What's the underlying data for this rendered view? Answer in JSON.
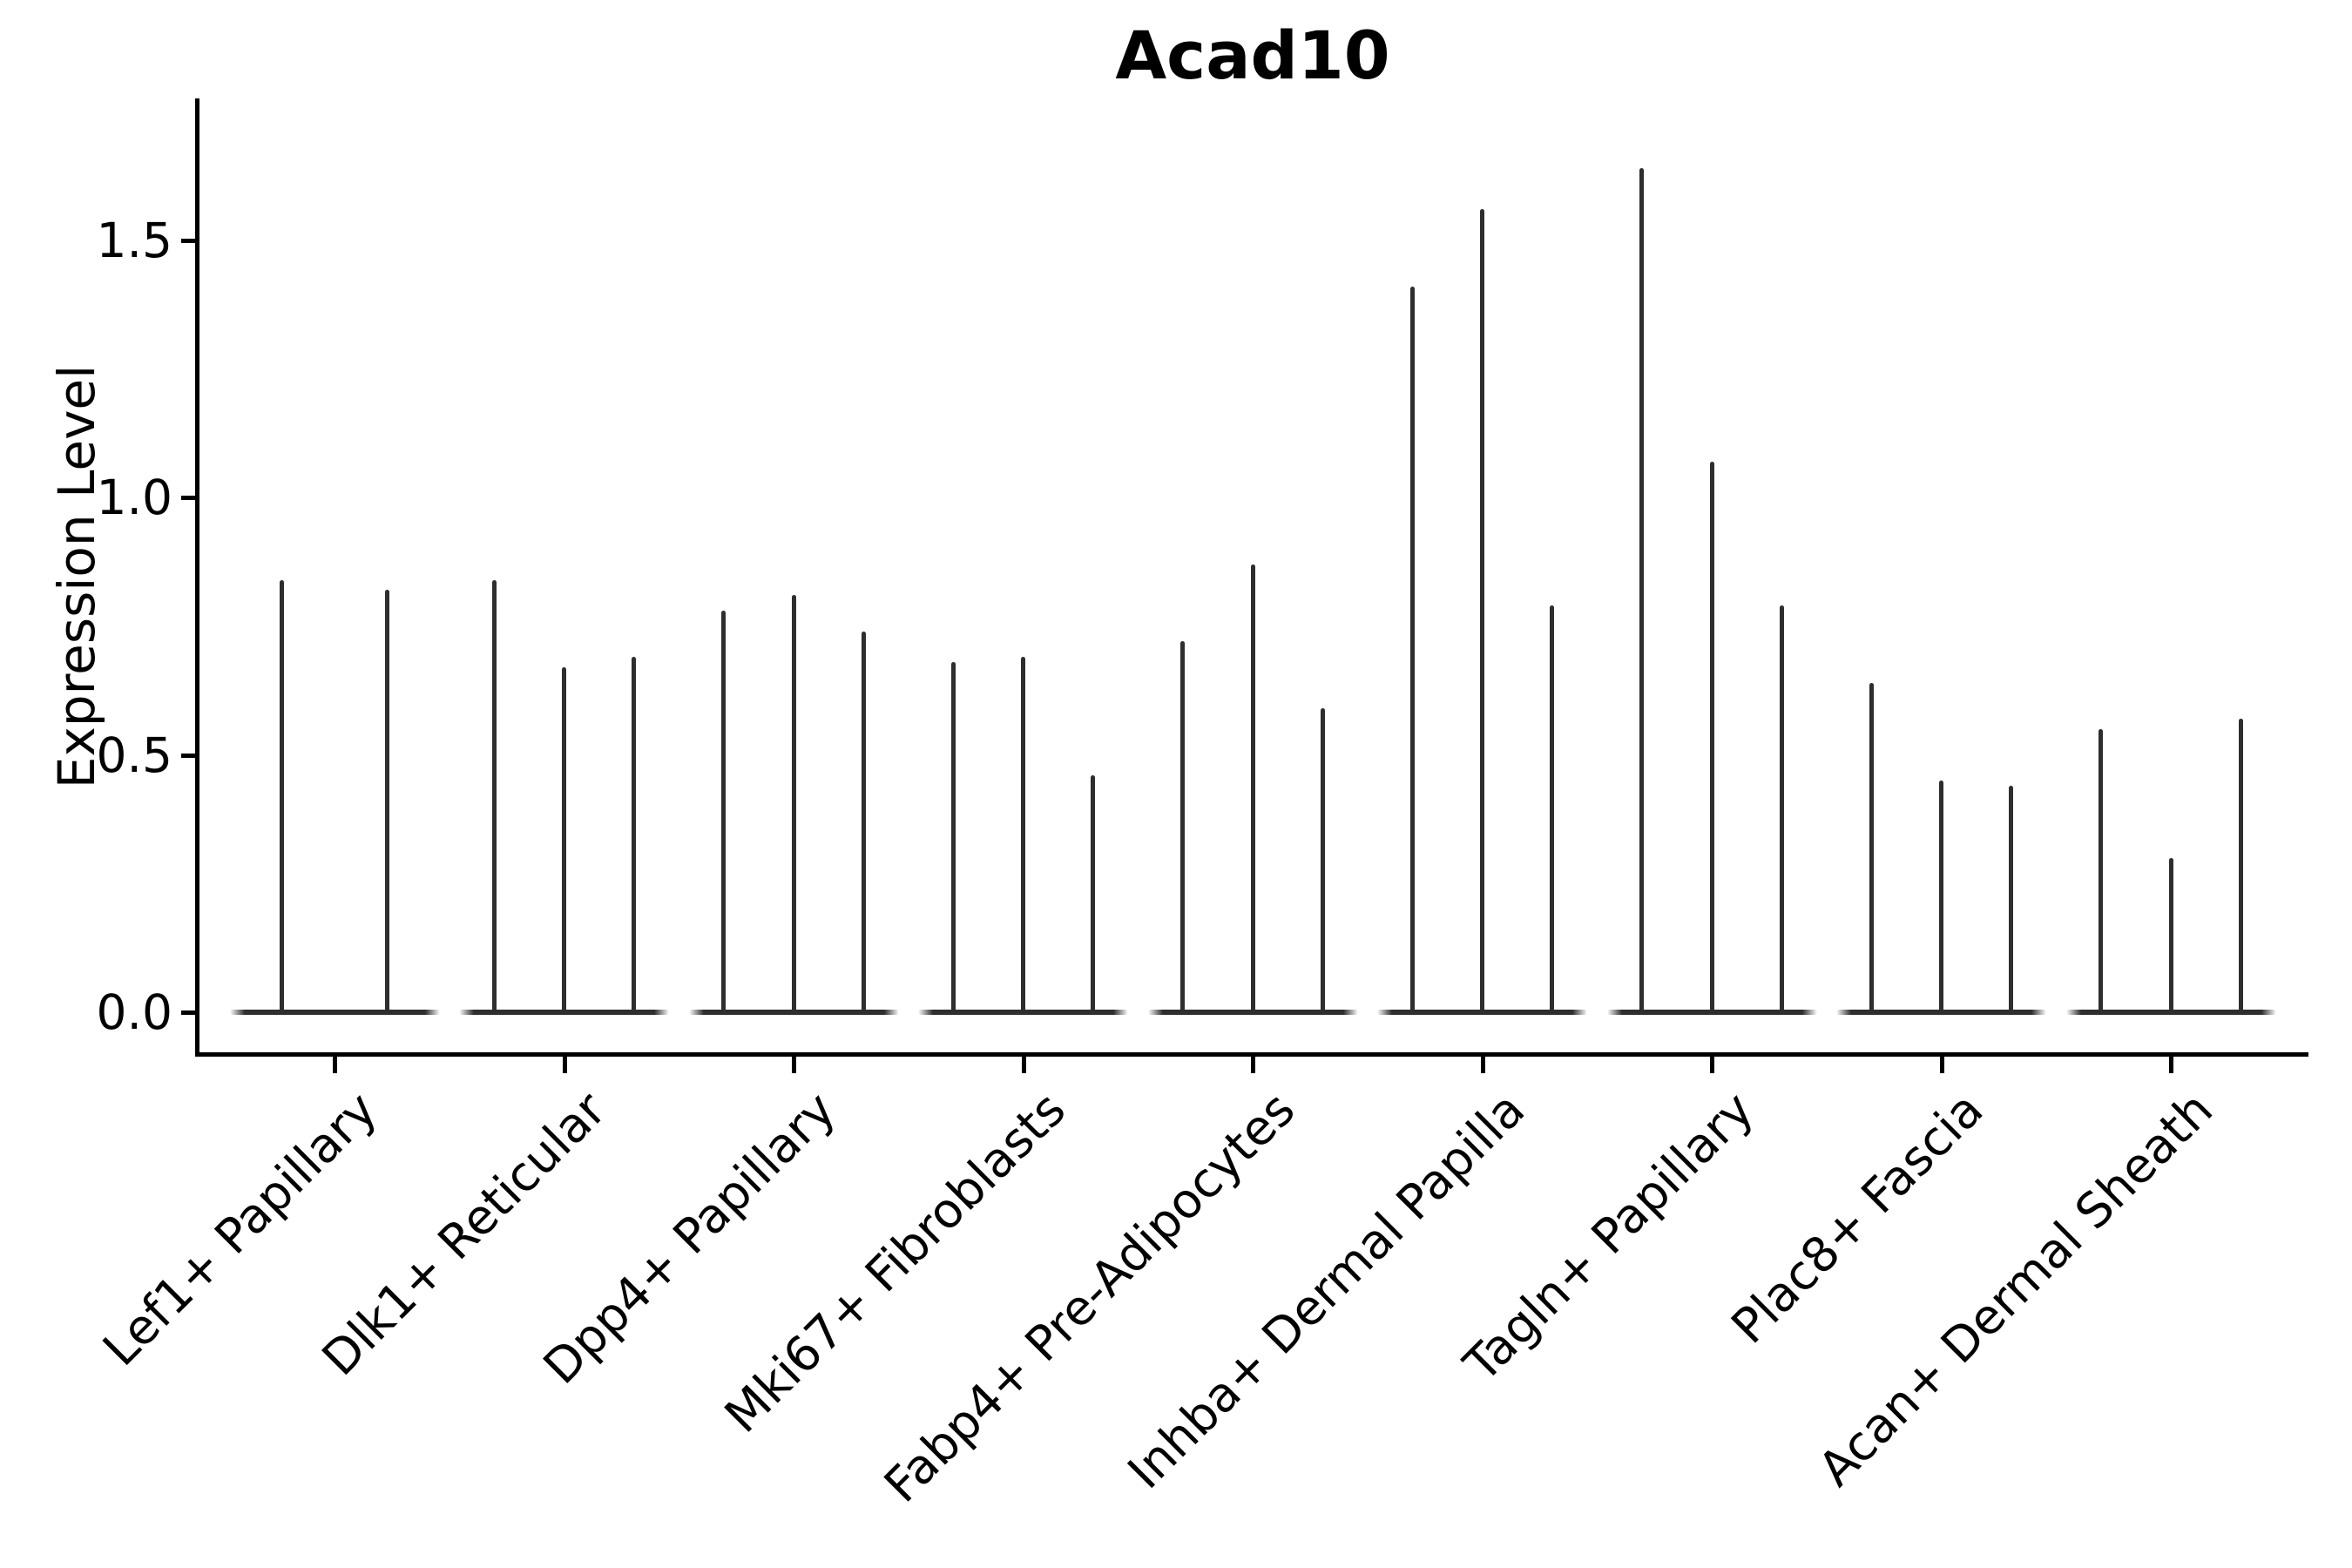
{
  "chart_data": {
    "type": "violin",
    "title": "Acad10",
    "xlabel": "",
    "ylabel": "Expression Level",
    "ytick_labels": [
      "0.0",
      "0.5",
      "1.0",
      "1.5"
    ],
    "ytick_values": [
      0.0,
      0.5,
      1.0,
      1.5
    ],
    "ylim": [
      -0.08,
      1.78
    ],
    "grid": false,
    "legend": "none",
    "categories": [
      "Lef1+ Papillary",
      "Dlk1+ Reticular",
      "Dpp4+ Papillary",
      "Mki67+ Fibroblasts",
      "Fabp4+ Pre-Adipocytes",
      "Inhba+ Dermal Papilla",
      "Tagln+ Papillary",
      "Plac8+ Fascia",
      "Acan+ Dermal Sheath"
    ],
    "violins": [
      [
        0.84,
        0.82
      ],
      [
        0.84,
        0.67,
        0.69
      ],
      [
        0.78,
        0.81,
        0.74
      ],
      [
        0.68,
        0.69,
        0.46
      ],
      [
        0.72,
        0.87,
        0.59
      ],
      [
        1.41,
        1.56,
        0.79
      ],
      [
        1.64,
        1.07,
        0.79
      ],
      [
        0.64,
        0.45,
        0.44
      ],
      [
        0.55,
        0.3,
        0.57
      ]
    ],
    "violin_color": "#2e2e2e",
    "axis_color": "#000000"
  }
}
